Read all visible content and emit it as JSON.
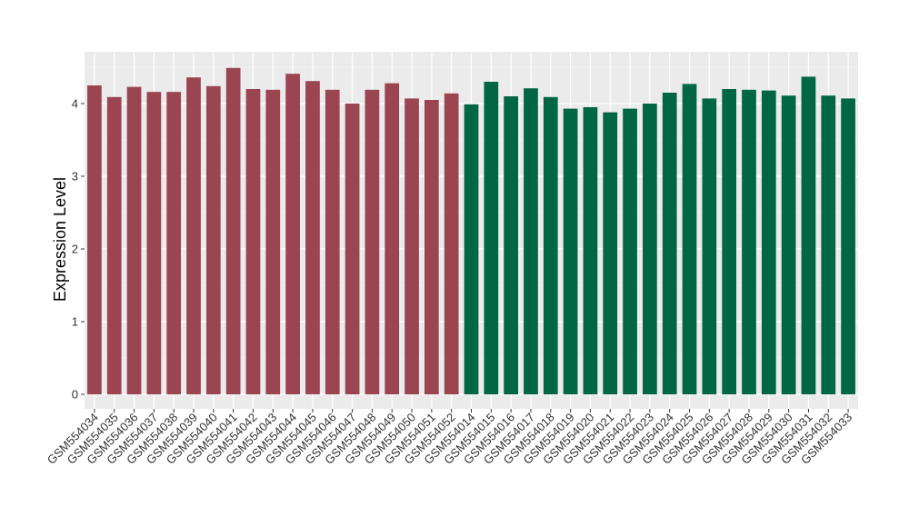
{
  "chart_data": {
    "type": "bar",
    "title": "",
    "xlabel": "",
    "ylabel": "Expression Level",
    "ylim": [
      0,
      4.7
    ],
    "y_ticks": [
      0,
      1,
      2,
      3,
      4
    ],
    "y_tick_labels": [
      "0",
      "1",
      "2",
      "3",
      "4"
    ],
    "grid": true,
    "legend": "none",
    "panel_background": "#ebebeb",
    "categories": [
      "GSM554034",
      "GSM554035",
      "GSM554036",
      "GSM554037",
      "GSM554038",
      "GSM554039",
      "GSM554040",
      "GSM554041",
      "GSM554042",
      "GSM554043",
      "GSM554044",
      "GSM554045",
      "GSM554046",
      "GSM554047",
      "GSM554048",
      "GSM554049",
      "GSM554050",
      "GSM554051",
      "GSM554052",
      "GSM554014",
      "GSM554015",
      "GSM554016",
      "GSM554017",
      "GSM554018",
      "GSM554019",
      "GSM554020",
      "GSM554021",
      "GSM554022",
      "GSM554023",
      "GSM554024",
      "GSM554025",
      "GSM554026",
      "GSM554027",
      "GSM554028",
      "GSM554029",
      "GSM554030",
      "GSM554031",
      "GSM554032",
      "GSM554033"
    ],
    "values": [
      4.25,
      4.09,
      4.23,
      4.16,
      4.16,
      4.36,
      4.24,
      4.49,
      4.2,
      4.19,
      4.41,
      4.31,
      4.19,
      4.0,
      4.19,
      4.28,
      4.07,
      4.05,
      4.14,
      3.99,
      4.3,
      4.1,
      4.21,
      4.09,
      3.93,
      3.95,
      3.88,
      3.93,
      4.0,
      4.15,
      4.27,
      4.07,
      4.2,
      4.19,
      4.18,
      4.11,
      4.37,
      4.11,
      4.07
    ],
    "group_sizes": [
      19,
      20
    ],
    "group_colors": [
      "#9b4452",
      "#006644"
    ]
  }
}
